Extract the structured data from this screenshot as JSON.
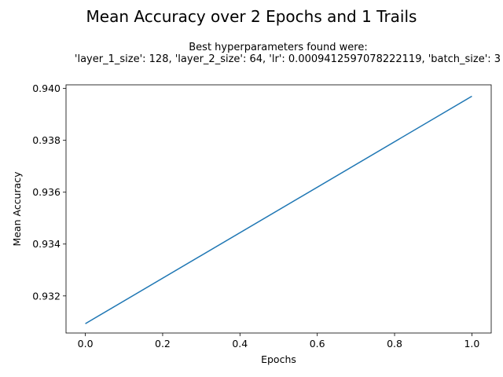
{
  "chart_data": {
    "type": "line",
    "title": "Mean Accuracy over 2 Epochs and 1 Trails",
    "subtitle_lines": [
      "Best hyperparameters found were:",
      "'layer_1_size': 128, 'layer_2_size': 64, 'lr': 0.0009412597078222119, 'batch_size': 3"
    ],
    "xlabel": "Epochs",
    "ylabel": "Mean Accuracy",
    "xlim": [
      -0.05,
      1.05
    ],
    "ylim": [
      0.93057,
      0.94014
    ],
    "xticks": [
      0.0,
      0.2,
      0.4,
      0.6,
      0.8,
      1.0
    ],
    "xtick_labels": [
      "0.0",
      "0.2",
      "0.4",
      "0.6",
      "0.8",
      "1.0"
    ],
    "yticks": [
      0.932,
      0.934,
      0.936,
      0.938,
      0.94
    ],
    "ytick_labels": [
      "0.932",
      "0.934",
      "0.936",
      "0.938",
      "0.940"
    ],
    "grid": false,
    "series": [
      {
        "name": "mean accuracy",
        "color": "#1f77b4",
        "x": [
          0,
          1
        ],
        "y": [
          0.93093,
          0.9397
        ]
      }
    ]
  }
}
